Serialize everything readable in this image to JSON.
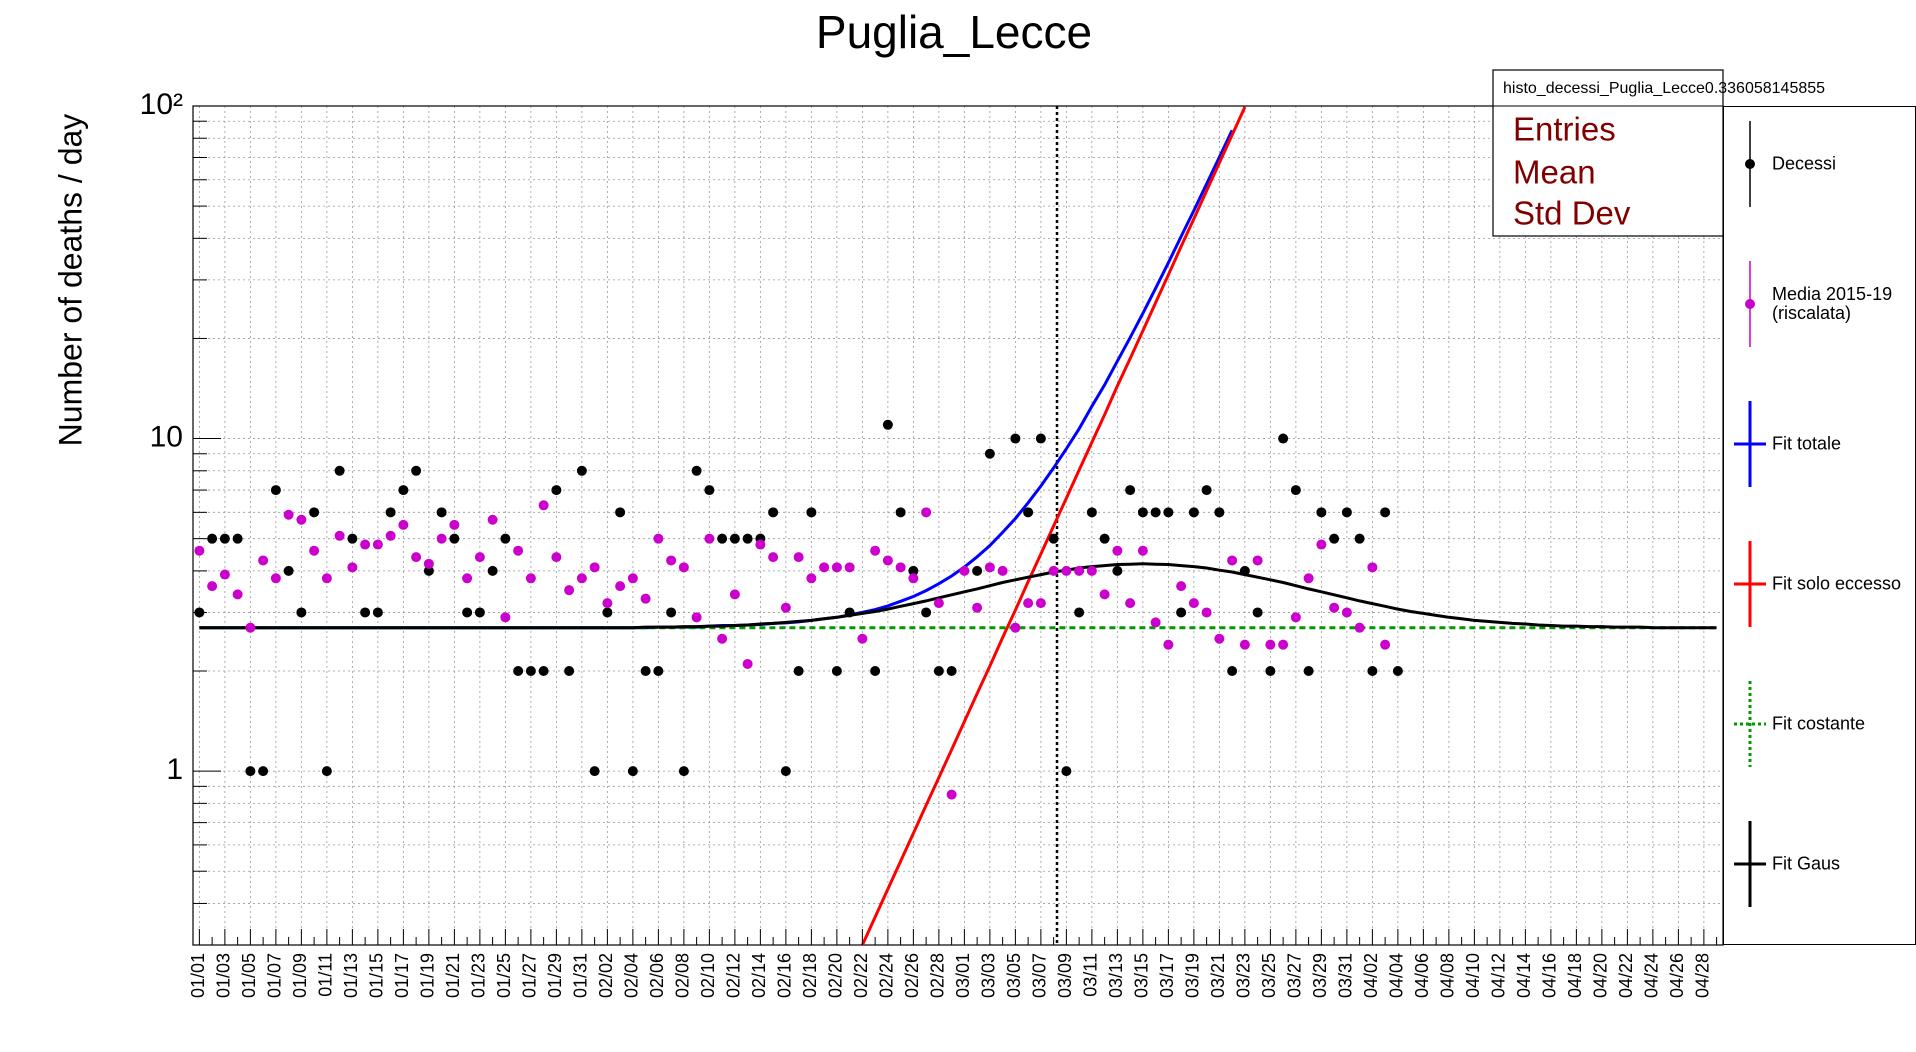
{
  "chart_data": {
    "type": "line",
    "title": "Puglia_Lecce",
    "y_label": "Number of deaths / day",
    "y_log": true,
    "grid": true,
    "legend_position": "right",
    "stats_box": {
      "title": "histo_decessi_Puglia_Lecce0.336058145855",
      "labels": [
        "Entries",
        "Mean",
        "Std Dev"
      ]
    },
    "ylim": [
      0.3,
      100
    ],
    "yticks": [
      1,
      10,
      {
        "value": 100,
        "label": "10²"
      }
    ],
    "yminorticks": [
      0.3,
      0.4,
      0.5,
      0.6,
      0.7,
      0.8,
      0.9,
      2,
      3,
      4,
      5,
      6,
      7,
      8,
      9,
      20,
      30,
      40,
      50,
      60,
      70,
      80,
      90
    ],
    "categories": [
      "01/01",
      null,
      "01/03",
      null,
      "01/05",
      null,
      "01/07",
      null,
      "01/09",
      null,
      "01/11",
      null,
      "01/13",
      null,
      "01/15",
      null,
      "01/17",
      null,
      "01/19",
      null,
      "01/21",
      null,
      "01/23",
      null,
      "01/25",
      null,
      "01/27",
      null,
      "01/29",
      null,
      "01/31",
      null,
      "02/02",
      null,
      "02/04",
      null,
      "02/06",
      null,
      "02/08",
      null,
      "02/10",
      null,
      "02/12",
      null,
      "02/14",
      null,
      "02/16",
      null,
      "02/18",
      null,
      "02/20",
      null,
      "02/22",
      null,
      "02/24",
      null,
      "02/26",
      null,
      "02/28",
      null,
      "03/01",
      null,
      "03/03",
      null,
      "03/05",
      null,
      "03/07",
      null,
      "03/09",
      null,
      "03/11",
      null,
      "03/13",
      null,
      "03/15",
      null,
      "03/17",
      null,
      "03/19",
      null,
      "03/21",
      null,
      "03/23",
      null,
      "03/25",
      null,
      "03/27",
      null,
      "03/29",
      null,
      "03/31",
      null,
      "04/02",
      null,
      "04/04",
      null,
      "04/06",
      null,
      "04/08",
      null,
      "04/10",
      null,
      "04/12",
      null,
      "04/14",
      null,
      "04/16",
      null,
      "04/18",
      null,
      "04/20",
      null,
      "04/22",
      null,
      "04/24",
      null,
      "04/26",
      null,
      "04/28",
      null
    ],
    "series": [
      {
        "name": "Decessi",
        "color": "#000000",
        "style": "markers",
        "values": [
          3,
          5,
          5,
          5,
          1,
          1,
          7,
          4,
          3,
          6,
          1,
          8,
          5,
          3,
          3,
          6,
          7,
          8,
          4,
          6,
          5,
          3,
          3,
          4,
          5,
          2,
          2,
          2,
          7,
          2,
          8,
          1,
          3,
          6,
          1,
          2,
          2,
          3,
          1,
          8,
          7,
          5,
          5,
          5,
          5,
          6,
          1,
          2,
          6,
          null,
          2,
          3,
          null,
          2,
          11,
          6,
          4,
          3,
          2,
          2,
          null,
          4,
          9,
          null,
          10,
          6,
          10,
          5,
          1,
          3,
          6,
          5,
          4,
          7,
          6,
          6,
          6,
          3,
          6,
          7,
          6,
          2,
          4,
          3,
          2,
          10,
          7,
          2,
          6,
          5,
          6,
          5,
          2,
          6,
          2,
          null,
          null,
          null,
          null,
          null,
          null,
          null,
          null,
          null,
          null,
          null,
          null,
          null,
          null,
          null,
          null,
          null,
          null,
          null,
          null,
          null,
          null,
          null,
          null,
          null
        ]
      },
      {
        "name": "Media 2015-19 (riscalata)",
        "color": "#cc00cc",
        "style": "markers",
        "values": [
          4.6,
          3.6,
          3.9,
          3.4,
          2.7,
          4.3,
          3.8,
          5.9,
          5.7,
          4.6,
          3.8,
          5.1,
          4.1,
          4.8,
          4.8,
          5.1,
          5.5,
          4.4,
          4.2,
          5.0,
          5.5,
          3.8,
          4.4,
          5.7,
          2.9,
          4.6,
          3.8,
          6.3,
          4.4,
          3.5,
          3.8,
          4.1,
          3.2,
          3.6,
          3.8,
          3.3,
          5.0,
          4.3,
          4.1,
          2.9,
          5.0,
          2.5,
          3.4,
          2.1,
          4.8,
          4.4,
          3.1,
          4.4,
          3.8,
          4.1,
          4.1,
          4.1,
          2.5,
          4.6,
          4.3,
          4.1,
          3.8,
          6.0,
          3.2,
          0.85,
          4.0,
          3.1,
          4.1,
          4.0,
          2.7,
          3.2,
          3.2,
          4.0,
          4.0,
          4.0,
          4.0,
          3.4,
          4.6,
          3.2,
          4.6,
          2.8,
          2.4,
          3.6,
          3.2,
          3.0,
          2.5,
          4.3,
          2.4,
          4.3,
          2.4,
          2.4,
          2.9,
          3.8,
          4.8,
          3.1,
          3.0,
          2.7,
          4.1,
          2.4,
          null,
          null,
          null,
          null,
          null,
          null,
          null,
          null,
          null,
          null,
          null,
          null,
          null,
          null,
          null,
          null,
          null,
          null,
          null,
          null,
          null,
          null,
          null,
          null,
          null,
          null
        ]
      },
      {
        "name": "Fit totale",
        "color": "#0000ff",
        "style": "line",
        "values": [
          2.7,
          2.7,
          2.7,
          2.7,
          2.7,
          2.7,
          2.7,
          2.7,
          2.7,
          2.7,
          2.7,
          2.7,
          2.7,
          2.7,
          2.7,
          2.7,
          2.7,
          2.7,
          2.7,
          2.7,
          2.7,
          2.7,
          2.7,
          2.7,
          2.7,
          2.7,
          2.7,
          2.7,
          2.7,
          2.7,
          2.7,
          2.7,
          2.7,
          2.7,
          2.7,
          2.7,
          2.71,
          2.71,
          2.71,
          2.71,
          2.73,
          2.74,
          2.74,
          2.75,
          2.76,
          2.78,
          2.79,
          2.81,
          2.84,
          2.87,
          2.9,
          2.95,
          3.0,
          3.06,
          3.14,
          3.24,
          3.35,
          3.49,
          3.66,
          3.86,
          4.11,
          4.41,
          4.77,
          5.22,
          5.75,
          6.41,
          7.2,
          8.16,
          9.32,
          10.7,
          12.5,
          14.5,
          17.1,
          20.1,
          23.8,
          28.3,
          33.8,
          40.5,
          48.5,
          58.3,
          70.2,
          84.5,
          null,
          null,
          null,
          null,
          null,
          null,
          null,
          null,
          null,
          null,
          null,
          null,
          null,
          null,
          null,
          null,
          null,
          null,
          null,
          null,
          null,
          null,
          null,
          null,
          null,
          null,
          null,
          null,
          null,
          null,
          null,
          null,
          null,
          null,
          null,
          null,
          null,
          null
        ]
      },
      {
        "name": "Fit solo eccesso",
        "color": "#ff0000",
        "style": "line",
        "values": [
          null,
          null,
          null,
          null,
          null,
          null,
          null,
          null,
          null,
          null,
          null,
          null,
          null,
          null,
          null,
          null,
          null,
          null,
          null,
          null,
          null,
          null,
          null,
          null,
          null,
          null,
          null,
          null,
          null,
          null,
          null,
          null,
          null,
          null,
          null,
          null,
          null,
          null,
          null,
          null,
          null,
          null,
          null,
          null,
          null,
          null,
          null,
          null,
          null,
          null,
          null,
          null,
          0.3,
          0.364,
          0.442,
          0.536,
          0.65,
          0.789,
          0.957,
          1.16,
          1.41,
          1.71,
          2.07,
          2.52,
          3.05,
          3.71,
          4.5,
          5.46,
          6.62,
          8.04,
          9.75,
          11.8,
          14.4,
          17.4,
          21.1,
          25.6,
          31.1,
          37.8,
          45.8,
          55.6,
          67.5,
          81.8,
          99.3,
          null,
          null,
          null,
          null,
          null,
          null,
          null,
          null,
          null,
          null,
          null,
          null,
          null,
          null,
          null,
          null,
          null,
          null,
          null,
          null,
          null,
          null,
          null,
          null,
          null,
          null,
          null,
          null,
          null,
          null,
          null,
          null,
          null,
          null,
          null,
          null,
          null
        ]
      },
      {
        "name": "Fit costante",
        "color": "#009900",
        "style": "dashed",
        "values": [
          2.7,
          2.7,
          2.7,
          2.7,
          2.7,
          2.7,
          2.7,
          2.7,
          2.7,
          2.7,
          2.7,
          2.7,
          2.7,
          2.7,
          2.7,
          2.7,
          2.7,
          2.7,
          2.7,
          2.7,
          2.7,
          2.7,
          2.7,
          2.7,
          2.7,
          2.7,
          2.7,
          2.7,
          2.7,
          2.7,
          2.7,
          2.7,
          2.7,
          2.7,
          2.7,
          2.7,
          2.7,
          2.7,
          2.7,
          2.7,
          2.7,
          2.7,
          2.7,
          2.7,
          2.7,
          2.7,
          2.7,
          2.7,
          2.7,
          2.7,
          2.7,
          2.7,
          2.7,
          2.7,
          2.7,
          2.7,
          2.7,
          2.7,
          2.7,
          2.7,
          2.7,
          2.7,
          2.7,
          2.7,
          2.7,
          2.7,
          2.7,
          2.7,
          2.7,
          2.7,
          2.7,
          2.7,
          2.7,
          2.7,
          2.7,
          2.7,
          2.7,
          2.7,
          2.7,
          2.7,
          2.7,
          2.7,
          2.7,
          2.7,
          2.7,
          2.7,
          2.7,
          2.7,
          2.7,
          2.7,
          2.7,
          2.7,
          2.7,
          2.7,
          2.7,
          2.7,
          2.7,
          2.7,
          2.7,
          2.7,
          2.7,
          2.7,
          2.7,
          2.7,
          2.7,
          2.7,
          2.7,
          2.7,
          2.7,
          2.7,
          2.7,
          2.7,
          2.7,
          2.7,
          2.7,
          2.7,
          2.7,
          2.7,
          2.7,
          2.7
        ]
      },
      {
        "name": "Fit Gaus",
        "color": "#000000",
        "style": "line",
        "values": [
          2.7,
          2.7,
          2.7,
          2.7,
          2.7,
          2.7,
          2.7,
          2.7,
          2.7,
          2.7,
          2.7,
          2.7,
          2.7,
          2.7,
          2.7,
          2.7,
          2.7,
          2.7,
          2.7,
          2.7,
          2.7,
          2.7,
          2.7,
          2.7,
          2.7,
          2.7,
          2.7,
          2.7,
          2.7,
          2.7,
          2.7,
          2.7,
          2.7,
          2.7,
          2.7,
          2.71,
          2.71,
          2.71,
          2.72,
          2.72,
          2.73,
          2.73,
          2.74,
          2.75,
          2.77,
          2.78,
          2.8,
          2.82,
          2.84,
          2.87,
          2.9,
          2.94,
          2.98,
          3.02,
          3.07,
          3.13,
          3.19,
          3.25,
          3.32,
          3.39,
          3.46,
          3.53,
          3.61,
          3.69,
          3.76,
          3.83,
          3.9,
          3.97,
          4.02,
          4.08,
          4.12,
          4.15,
          4.18,
          4.19,
          4.2,
          4.19,
          4.18,
          4.15,
          4.12,
          4.08,
          4.02,
          3.97,
          3.9,
          3.83,
          3.76,
          3.69,
          3.61,
          3.53,
          3.46,
          3.39,
          3.32,
          3.25,
          3.19,
          3.13,
          3.07,
          3.02,
          2.98,
          2.94,
          2.9,
          2.87,
          2.84,
          2.82,
          2.8,
          2.78,
          2.77,
          2.75,
          2.74,
          2.73,
          2.73,
          2.72,
          2.72,
          2.71,
          2.71,
          2.71,
          2.7,
          2.7,
          2.7,
          2.7,
          2.7,
          2.7
        ]
      }
    ]
  }
}
